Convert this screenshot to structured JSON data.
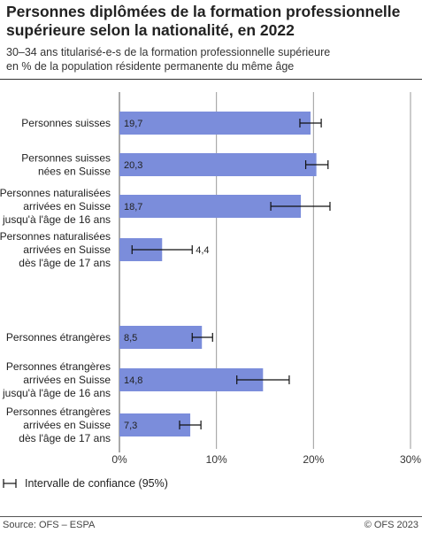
{
  "header": {
    "title": "Personnes diplômées de la formation professionnelle supérieure selon la nationalité, en 2022",
    "subtitle_line1": "30–34 ans titularisé-e-s de la formation professionnelle supérieure",
    "subtitle_line2": "en % de la population résidente permanente du même âge"
  },
  "legend": {
    "label": "Intervalle de confiance (95%)",
    "icon": "error-bar-icon"
  },
  "footer": {
    "source": "Source: OFS – ESPA",
    "copyright": "© OFS 2023"
  },
  "colors": {
    "bar": "#7b8ddb",
    "axis": "#555555",
    "grid": "#9a9a9a",
    "text": "#222222"
  },
  "chart_data": {
    "type": "bar",
    "orientation": "horizontal",
    "xlim": [
      0,
      30
    ],
    "ticks": [
      0,
      10,
      20,
      30
    ],
    "tick_labels": [
      "0%",
      "10%",
      "20%",
      "30%"
    ],
    "grid": true,
    "categories": [
      {
        "label": [
          "Personnes suisses"
        ],
        "value": 19.7,
        "value_label": "19,7",
        "ci": [
          18.6,
          20.8
        ]
      },
      {
        "label": [
          "Personnes suisses",
          "nées en Suisse"
        ],
        "value": 20.3,
        "value_label": "20,3",
        "ci": [
          19.2,
          21.5
        ]
      },
      {
        "label": [
          "Personnes naturalisées",
          "arrivées en Suisse",
          "jusqu'à l'âge de 16 ans"
        ],
        "value": 18.7,
        "value_label": "18,7",
        "ci": [
          15.6,
          21.7
        ]
      },
      {
        "label": [
          "Personnes naturalisées",
          "arrivées en Suisse",
          "dès l'âge de 17 ans"
        ],
        "value": 4.4,
        "value_label": "4,4",
        "ci": [
          1.3,
          7.5
        ]
      },
      {
        "label": [
          "Personnes étrangères"
        ],
        "value": 8.5,
        "value_label": "8,5",
        "ci": [
          7.5,
          9.6
        ]
      },
      {
        "label": [
          "Personnes étrangères",
          "arrivées en Suisse",
          "jusqu'à l'âge de 16 ans"
        ],
        "value": 14.8,
        "value_label": "14,8",
        "ci": [
          12.1,
          17.5
        ]
      },
      {
        "label": [
          "Personnes étrangères",
          "arrivées en Suisse",
          "dès l'âge de 17 ans"
        ],
        "value": 7.3,
        "value_label": "7,3",
        "ci": [
          6.2,
          8.4
        ]
      }
    ]
  }
}
